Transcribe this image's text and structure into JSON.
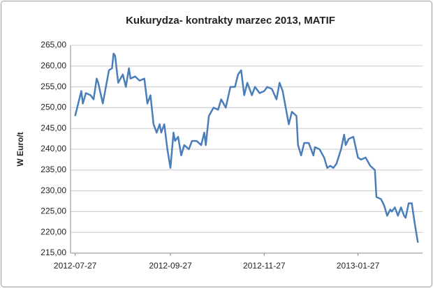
{
  "chart_data": {
    "type": "line",
    "title": "Kukurydza- kontrakty marzec 2013, MATIF",
    "y_label": "W Euro/t",
    "x": [
      "2012-07-27",
      "2012-07-29",
      "2012-07-31",
      "2012-08-01",
      "2012-08-03",
      "2012-08-06",
      "2012-08-08",
      "2012-08-10",
      "2012-08-11",
      "2012-08-14",
      "2012-08-16",
      "2012-08-18",
      "2012-08-20",
      "2012-08-21",
      "2012-08-22",
      "2012-08-24",
      "2012-08-27",
      "2012-08-29",
      "2012-08-31",
      "2012-09-01",
      "2012-09-04",
      "2012-09-07",
      "2012-09-10",
      "2012-09-12",
      "2012-09-14",
      "2012-09-16",
      "2012-09-18",
      "2012-09-20",
      "2012-09-21",
      "2012-09-23",
      "2012-09-25",
      "2012-09-27",
      "2012-09-29",
      "2012-09-30",
      "2012-10-02",
      "2012-10-04",
      "2012-10-06",
      "2012-10-09",
      "2012-10-11",
      "2012-10-14",
      "2012-10-17",
      "2012-10-19",
      "2012-10-20",
      "2012-10-22",
      "2012-10-25",
      "2012-10-28",
      "2012-10-30",
      "2012-11-02",
      "2012-11-05",
      "2012-11-08",
      "2012-11-10",
      "2012-11-12",
      "2012-11-14",
      "2012-11-16",
      "2012-11-19",
      "2012-11-21",
      "2012-11-24",
      "2012-11-27",
      "2012-11-29",
      "2012-12-02",
      "2012-12-05",
      "2012-12-07",
      "2012-12-09",
      "2012-12-10",
      "2012-12-13",
      "2012-12-15",
      "2012-12-18",
      "2012-12-19",
      "2012-12-21",
      "2012-12-23",
      "2012-12-26",
      "2012-12-29",
      "2012-12-30",
      "2013-01-02",
      "2013-01-05",
      "2013-01-07",
      "2013-01-09",
      "2013-01-11",
      "2013-01-13",
      "2013-01-16",
      "2013-01-18",
      "2013-01-19",
      "2013-01-21",
      "2013-01-24",
      "2013-01-27",
      "2013-01-29",
      "2013-02-01",
      "2013-02-04",
      "2013-02-07",
      "2013-02-08",
      "2013-02-11",
      "2013-02-13",
      "2013-02-15",
      "2013-02-17",
      "2013-02-18",
      "2013-02-20",
      "2013-02-22",
      "2013-02-24",
      "2013-02-26",
      "2013-02-27",
      "2013-03-01",
      "2013-03-03",
      "2013-03-05",
      "2013-03-07"
    ],
    "series": [
      {
        "name": "MATIF",
        "color": "#4a7ebb",
        "values": [
          248,
          251,
          254,
          251,
          253.5,
          253,
          252,
          257,
          256,
          251,
          255,
          259,
          259.5,
          263,
          262.5,
          256,
          258,
          255,
          259.5,
          257,
          257.5,
          256.5,
          257,
          251,
          253,
          246,
          244,
          246,
          244,
          246,
          240,
          235.5,
          244,
          242,
          243,
          238.5,
          241,
          240,
          242,
          242,
          241,
          244,
          241,
          248,
          250,
          249.5,
          252,
          250,
          255,
          255,
          258,
          259,
          253,
          256,
          253,
          255,
          253.5,
          254,
          255,
          254.5,
          252,
          256,
          254,
          252,
          246,
          249,
          248,
          241,
          238.5,
          241.5,
          241.5,
          238.5,
          240.5,
          240,
          238,
          235.5,
          236,
          235.5,
          236.5,
          240,
          243.5,
          241,
          242.5,
          243,
          238,
          237.5,
          238,
          236,
          235,
          228.5,
          228,
          226.5,
          224,
          225.5,
          225,
          226,
          224,
          226,
          224,
          223.5,
          227,
          227,
          222,
          217.5
        ]
      }
    ],
    "xlim": [
      "2012-07-24",
      "2013-03-10"
    ],
    "xticks": [
      "2012-07-27",
      "2012-09-27",
      "2012-11-27",
      "2013-01-27"
    ],
    "ylim": [
      215,
      265
    ],
    "yticks": [
      {
        "value": 215,
        "label": "215,00"
      },
      {
        "value": 220,
        "label": "220,00"
      },
      {
        "value": 225,
        "label": "225,00"
      },
      {
        "value": 230,
        "label": "230,00"
      },
      {
        "value": 235,
        "label": "235,00"
      },
      {
        "value": 240,
        "label": "240,00"
      },
      {
        "value": 245,
        "label": "245,00"
      },
      {
        "value": 250,
        "label": "250,00"
      },
      {
        "value": 255,
        "label": "255,00"
      },
      {
        "value": 260,
        "label": "260,00"
      },
      {
        "value": 265,
        "label": "265,00"
      }
    ],
    "grid": true
  }
}
